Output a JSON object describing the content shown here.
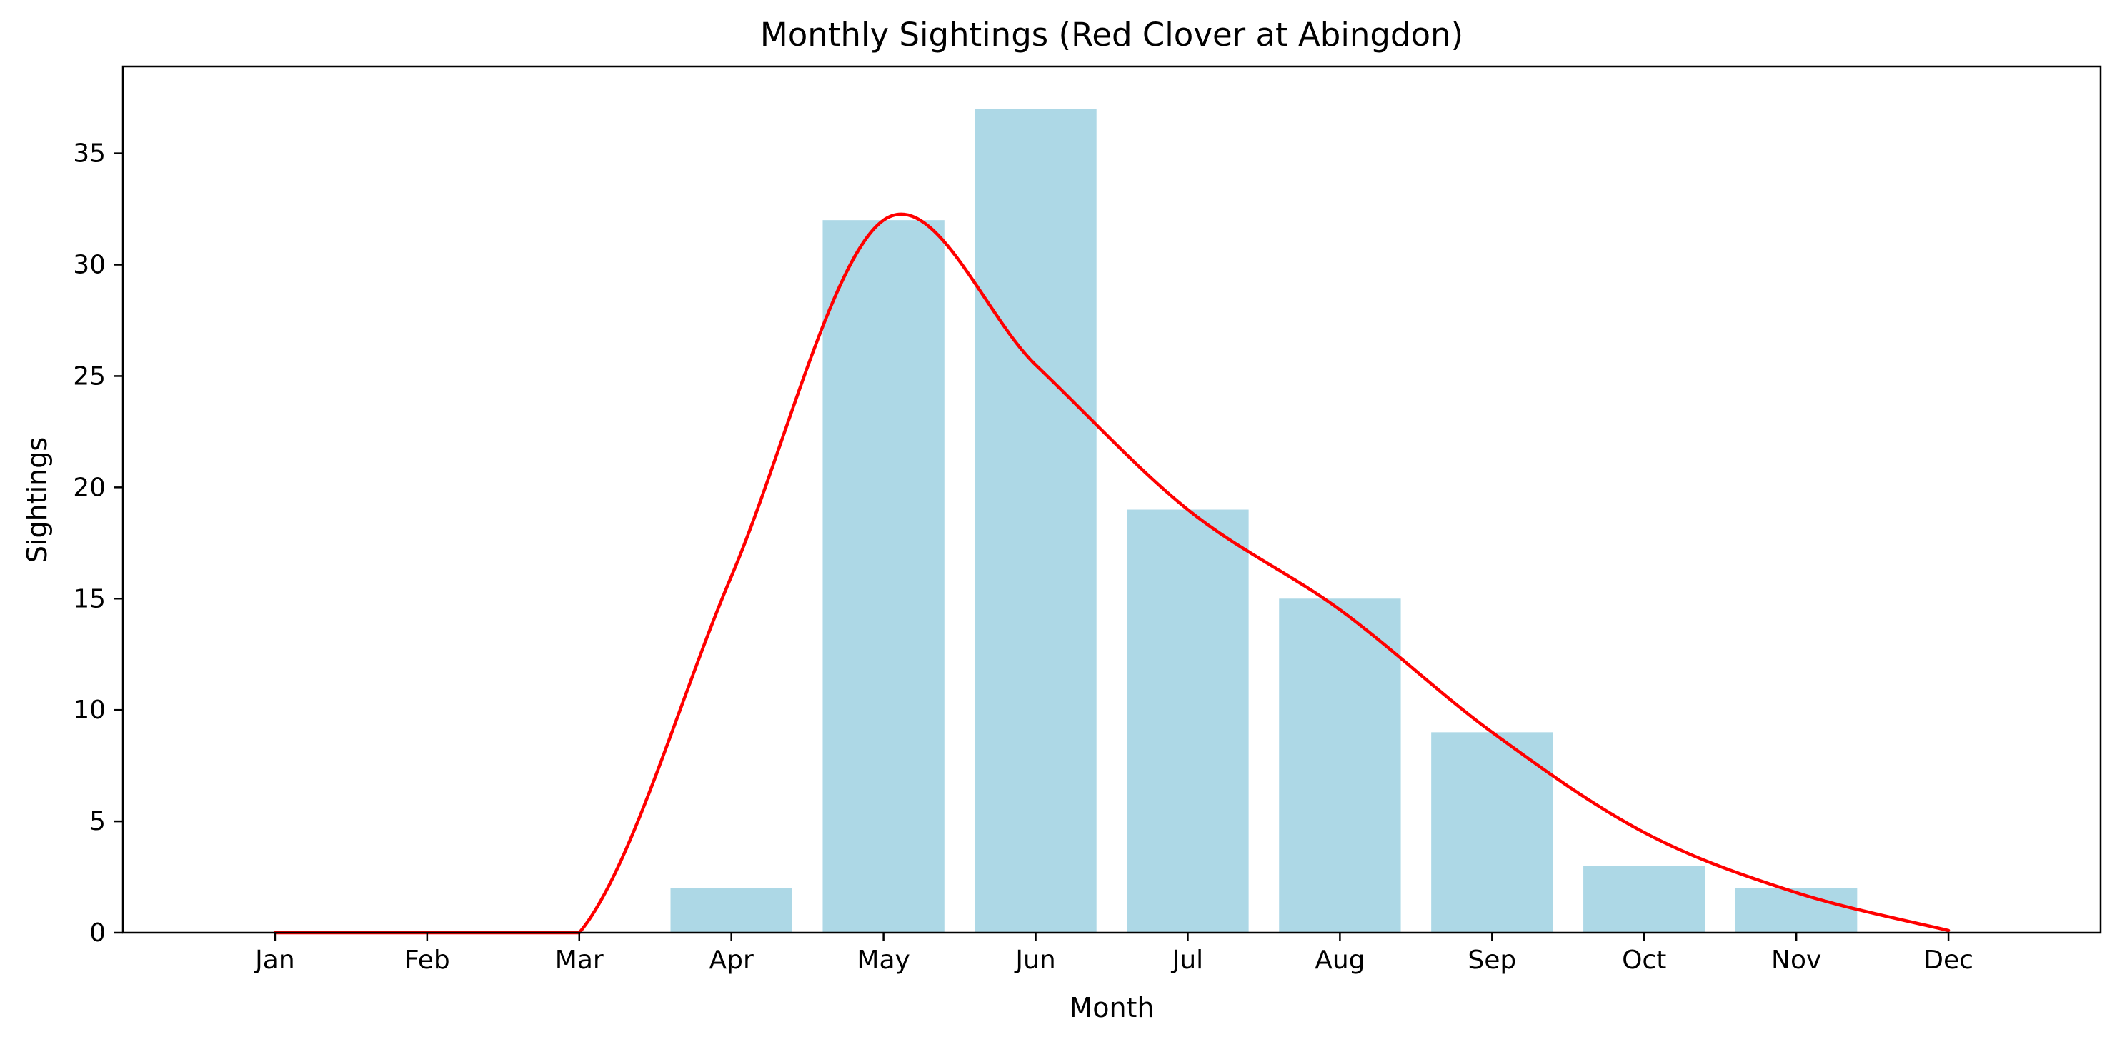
{
  "chart_data": {
    "type": "bar",
    "title": "Monthly Sightings (Red Clover at Abingdon)",
    "xlabel": "Month",
    "ylabel": "Sightings",
    "categories": [
      "Jan",
      "Feb",
      "Mar",
      "Apr",
      "May",
      "Jun",
      "Jul",
      "Aug",
      "Sep",
      "Oct",
      "Nov",
      "Dec"
    ],
    "values": [
      0,
      0,
      0,
      2,
      32,
      37,
      19,
      15,
      9,
      3,
      2,
      0
    ],
    "trend_line": [
      0,
      0,
      0,
      16,
      32,
      25.5,
      19,
      14.5,
      9,
      4.5,
      1.8,
      0.1
    ],
    "ylim": [
      0,
      38.9
    ],
    "yticks": [
      0,
      5,
      10,
      15,
      20,
      25,
      30,
      35
    ],
    "grid": false,
    "colors": {
      "bar": "#add8e6",
      "line": "#ff0000",
      "axis": "#000000"
    }
  }
}
